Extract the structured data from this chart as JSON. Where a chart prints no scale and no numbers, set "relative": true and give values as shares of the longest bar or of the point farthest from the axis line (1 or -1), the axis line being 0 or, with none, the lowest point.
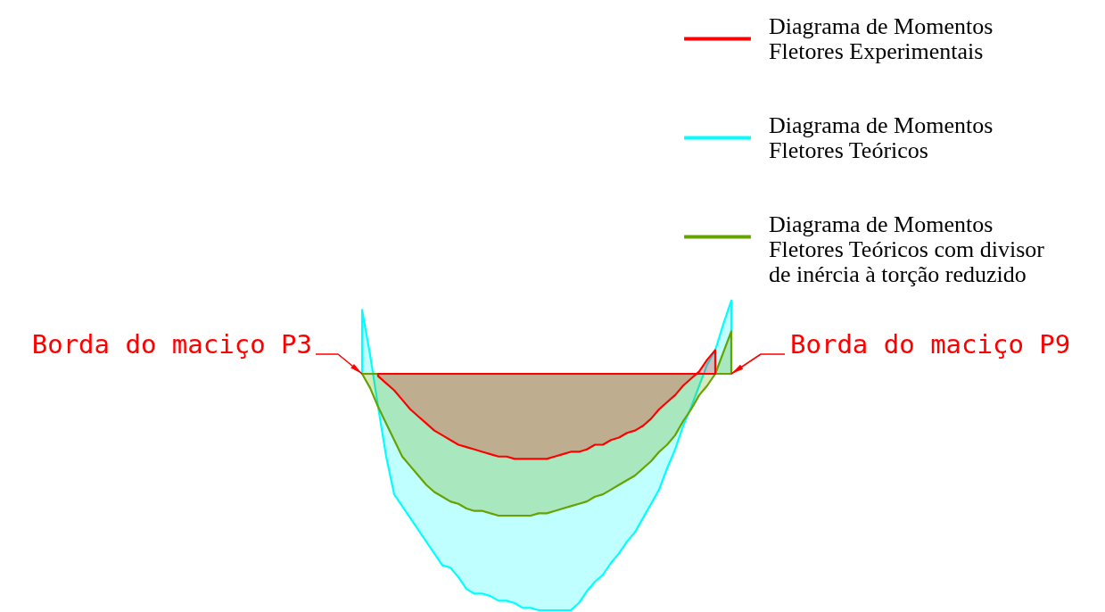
{
  "chart_data": {
    "type": "area",
    "relative": true,
    "categories": [
      null,
      null,
      null,
      null,
      null,
      null,
      null,
      null,
      null,
      null,
      null,
      null,
      null,
      null,
      null,
      null,
      null,
      null,
      null,
      null,
      null,
      null,
      null,
      null,
      null,
      null,
      null,
      null,
      null,
      null,
      null,
      null,
      null,
      null,
      null,
      null,
      null,
      null,
      null,
      null,
      null,
      null,
      null,
      null,
      null,
      null,
      null
    ],
    "series": [
      {
        "name": "Diagrama de Momentos\nFletores Experimentais",
        "color": "#ff0000",
        "values": [
          null,
          null,
          -0.01,
          -0.04,
          -0.07,
          -0.11,
          -0.15,
          -0.18,
          -0.21,
          -0.24,
          -0.26,
          -0.28,
          -0.3,
          -0.31,
          -0.32,
          -0.33,
          -0.34,
          -0.35,
          -0.35,
          -0.36,
          -0.36,
          -0.36,
          -0.36,
          -0.36,
          -0.35,
          -0.34,
          -0.33,
          -0.33,
          -0.32,
          -0.3,
          -0.3,
          -0.28,
          -0.27,
          -0.25,
          -0.24,
          -0.22,
          -0.19,
          -0.15,
          -0.12,
          -0.09,
          -0.05,
          -0.02,
          0.01,
          0.06,
          0.1,
          null,
          null
        ]
      },
      {
        "name": "Diagrama de Momentos\nFletores Teóricos",
        "color": "#00ffff",
        "values": [
          0.27,
          0.08,
          -0.14,
          -0.35,
          -0.51,
          -0.56,
          -0.61,
          -0.66,
          -0.71,
          -0.76,
          -0.81,
          -0.82,
          -0.86,
          -0.91,
          -0.93,
          -0.93,
          -0.94,
          -0.96,
          -0.96,
          -0.97,
          -0.99,
          -0.99,
          -1.0,
          -1.0,
          -1.0,
          -1.0,
          -1.0,
          -0.97,
          -0.92,
          -0.88,
          -0.85,
          -0.8,
          -0.76,
          -0.71,
          -0.67,
          -0.61,
          -0.55,
          -0.49,
          -0.4,
          -0.32,
          -0.22,
          -0.14,
          -0.05,
          0.04,
          0.1,
          0.21,
          0.31
        ]
      },
      {
        "name": "Diagrama de Momentos\nFletores Teóricos com divisor\nde inércia à torção reduzido",
        "color": "#66a300",
        "values": [
          0,
          -0.06,
          -0.14,
          -0.21,
          -0.28,
          -0.35,
          -0.39,
          -0.43,
          -0.47,
          -0.5,
          -0.52,
          -0.54,
          -0.55,
          -0.57,
          -0.58,
          -0.58,
          -0.59,
          -0.6,
          -0.6,
          -0.6,
          -0.6,
          -0.6,
          -0.59,
          -0.59,
          -0.58,
          -0.57,
          -0.56,
          -0.55,
          -0.54,
          -0.52,
          -0.51,
          -0.49,
          -0.47,
          -0.45,
          -0.43,
          -0.4,
          -0.37,
          -0.33,
          -0.3,
          -0.26,
          -0.2,
          -0.15,
          -0.09,
          -0.05,
          0,
          0.09,
          0.18
        ]
      }
    ],
    "legend": "top right",
    "annotations": [
      "Borda do maciço P3",
      "Borda do maciço P9"
    ]
  }
}
